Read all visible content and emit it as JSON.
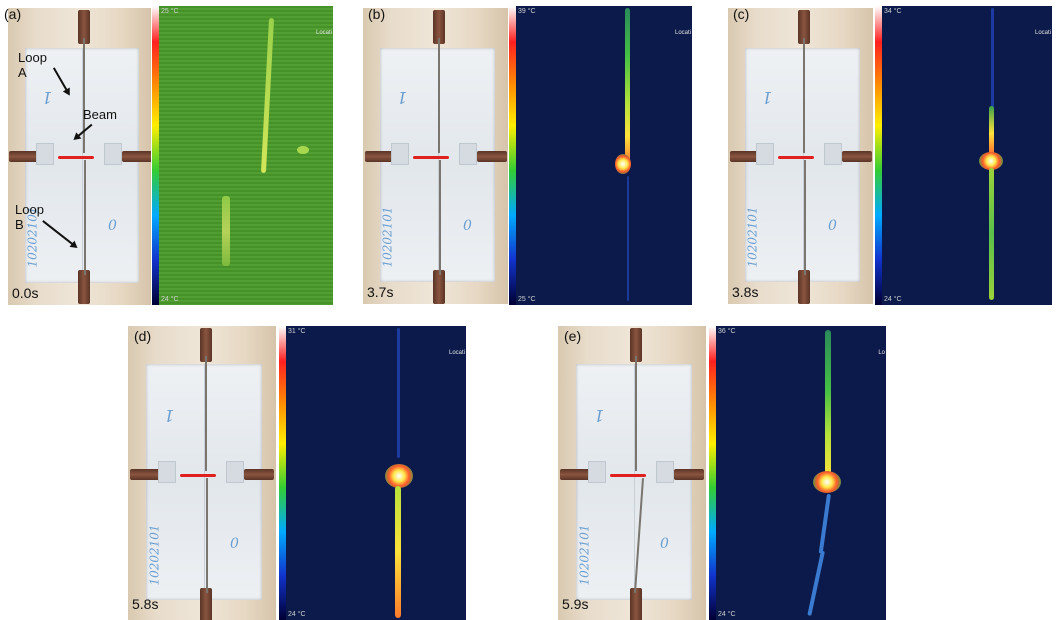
{
  "panels": {
    "a": {
      "label": "(a)",
      "time": "0.0s",
      "temp_max": "25 °C",
      "temp_min": "24 °C",
      "loc_text": "Locati"
    },
    "b": {
      "label": "(b)",
      "time": "3.7s",
      "temp_max": "39 °C",
      "temp_min": "25 °C",
      "loc_text": "Locati"
    },
    "c": {
      "label": "(c)",
      "time": "3.8s",
      "temp_max": "34 °C",
      "temp_min": "24 °C",
      "loc_text": "Locati"
    },
    "d": {
      "label": "(d)",
      "time": "5.8s",
      "temp_max": "31 °C",
      "temp_min": "24 °C",
      "loc_text": "Locati"
    },
    "e": {
      "label": "(e)",
      "time": "5.9s",
      "temp_max": "36 °C",
      "temp_min": "24 °C",
      "loc_text": "Lo"
    }
  },
  "annotations": {
    "loop_a": "Loop A",
    "beam": "Beam",
    "loop_b": "Loop B"
  },
  "paper_marks": {
    "top_digit": "1",
    "bottom_digit": "0",
    "serial": "10202101"
  },
  "colors": {
    "thermal_bg": "#0b1a4a",
    "thermal_bg_a": "#4a9a2a",
    "red_line": "#e0201c"
  }
}
